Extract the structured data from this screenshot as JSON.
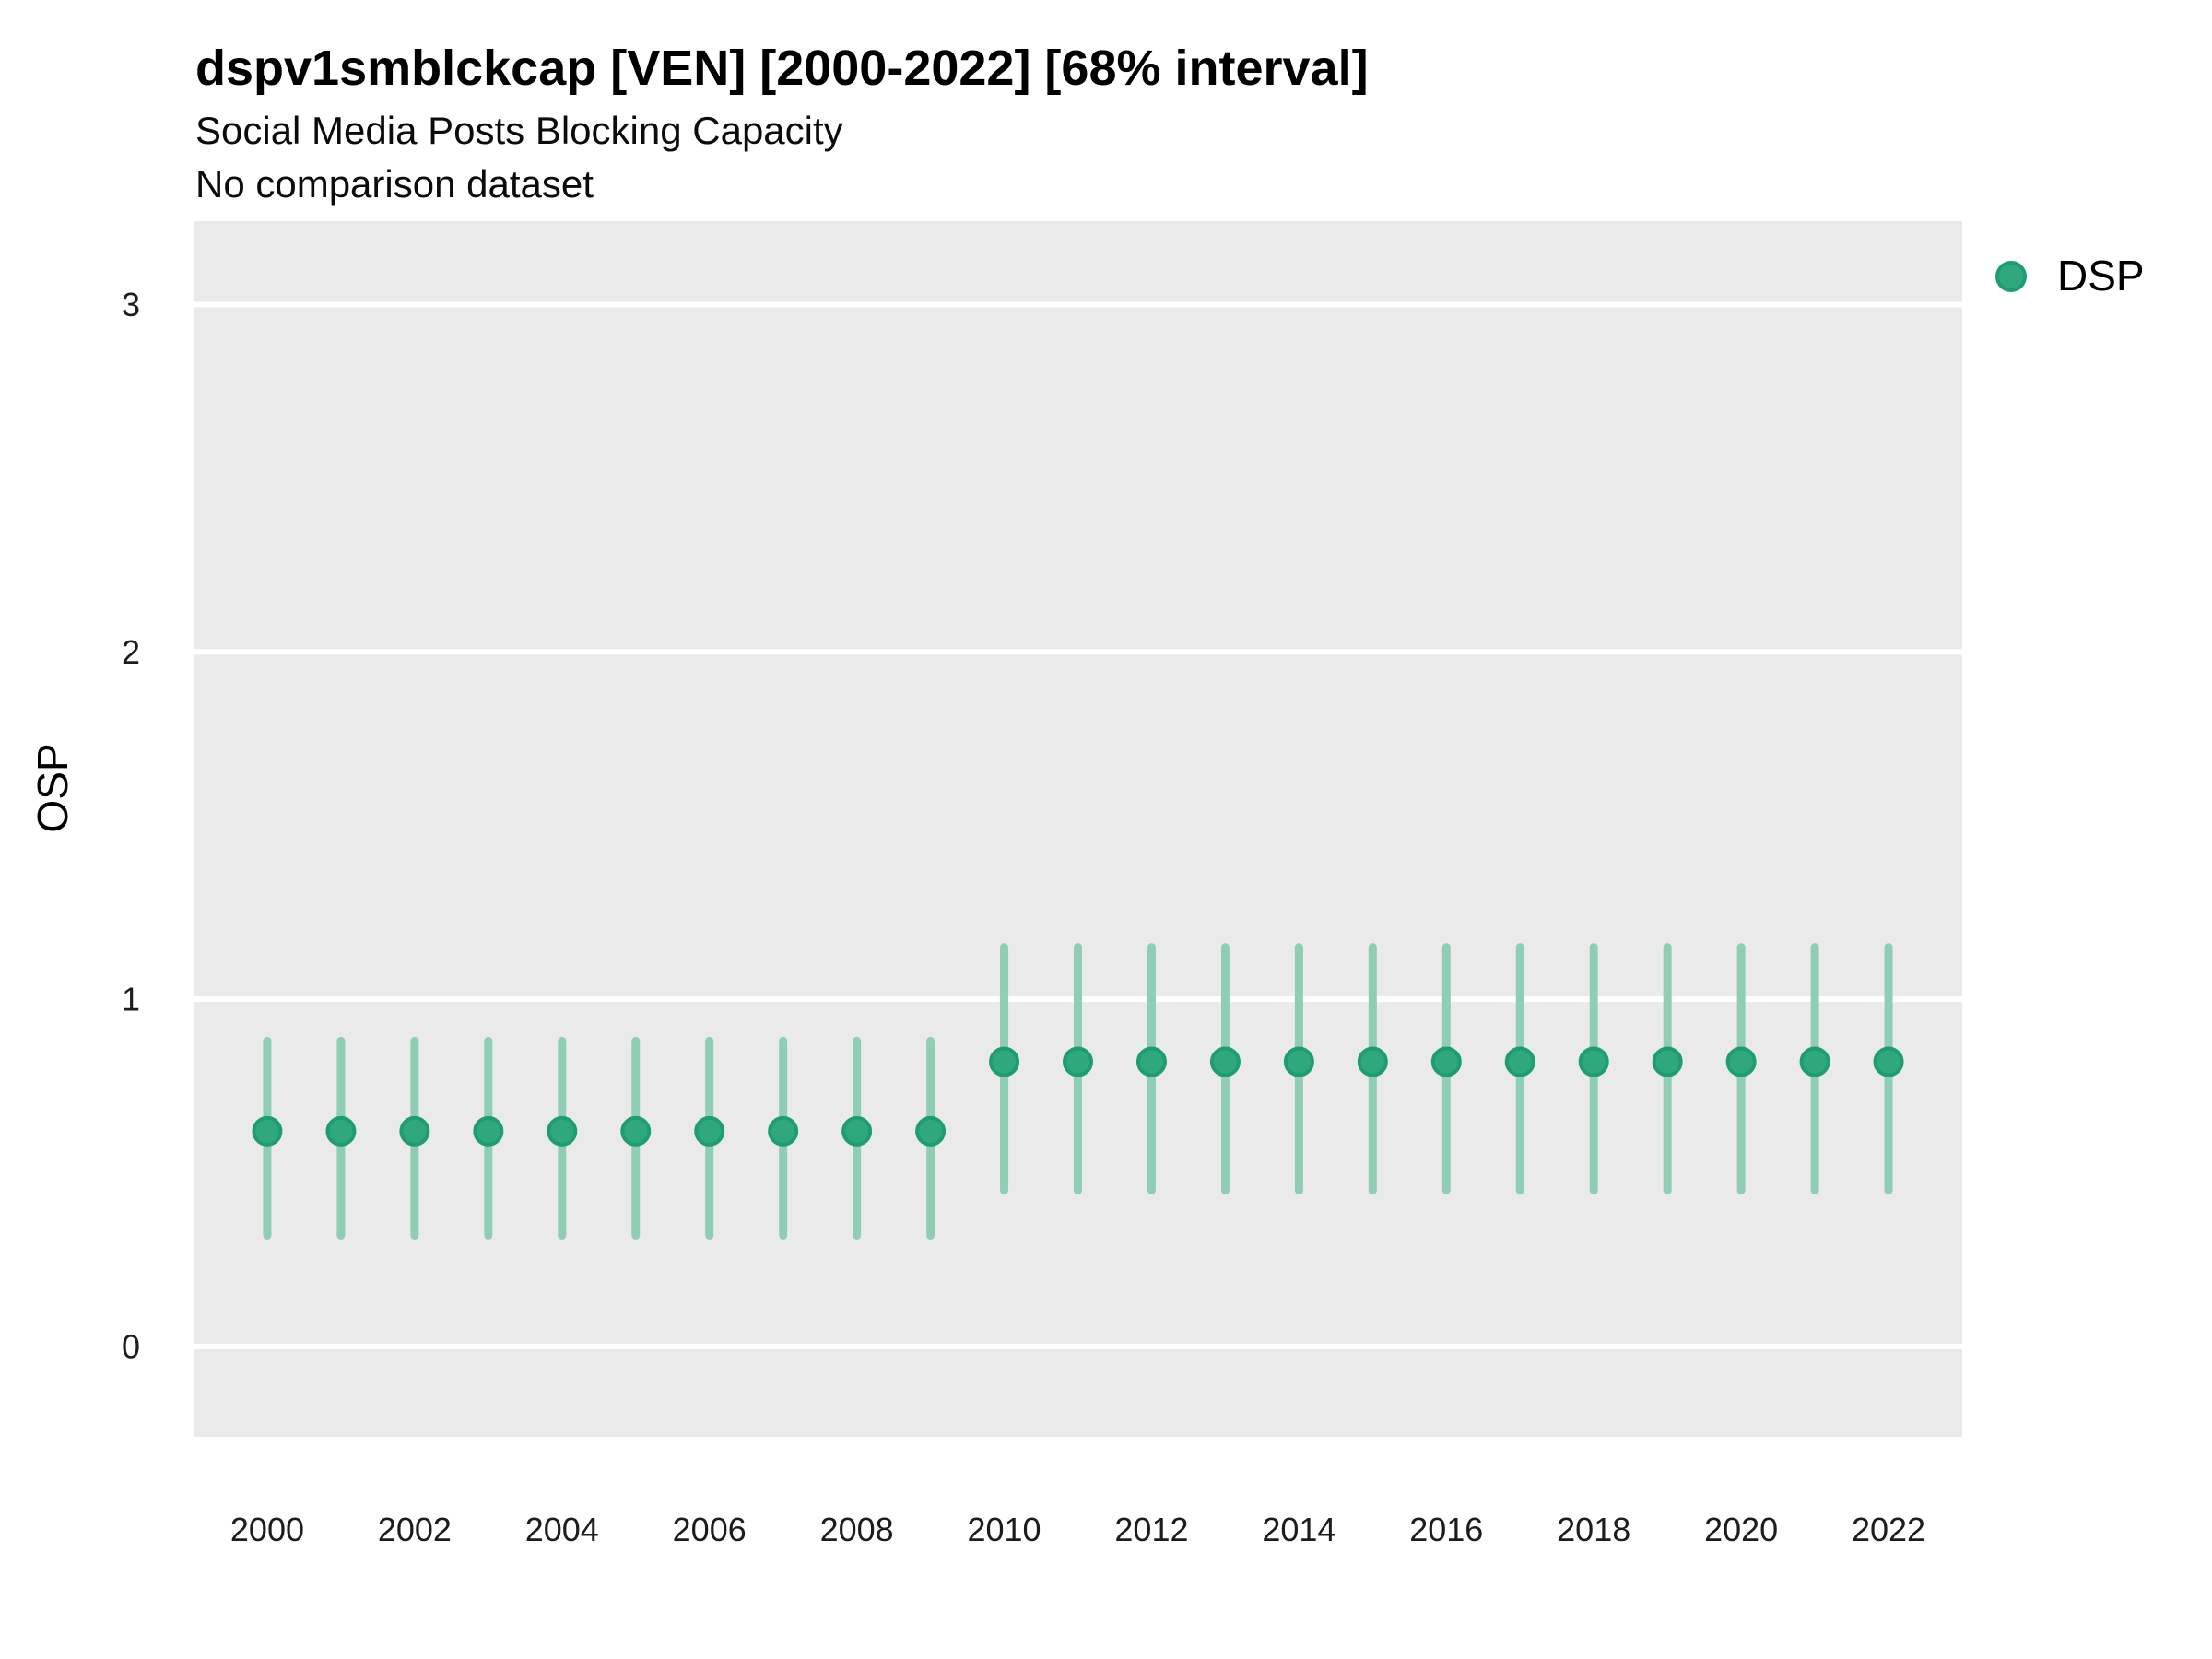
{
  "header": {
    "title": "dspv1smblckcap [VEN] [2000-2022] [68% interval]",
    "subtitle": "Social Media Posts Blocking Capacity",
    "subtitle2": "No comparison dataset"
  },
  "legend": {
    "series_label": "DSP"
  },
  "colors": {
    "point_fill": "#2FA87D",
    "point_stroke": "#1E9E70",
    "interval": "#90CDB5",
    "panel_bg": "#EAEAEA",
    "gridline": "#FFFFFF",
    "axis_text": "#1c1c1c"
  },
  "chart_data": {
    "type": "scatter",
    "subtype": "pointrange",
    "title": "dspv1smblckcap [VEN] [2000-2022] [68% interval]",
    "subtitle": "Social Media Posts Blocking Capacity",
    "note": "No comparison dataset",
    "interval_level": "68%",
    "xlabel": "",
    "ylabel": "OSP",
    "xlim": [
      1999,
      2023
    ],
    "ylim": [
      -0.26,
      3.24
    ],
    "grid": "horizontal-major-only",
    "legend_position": "top-right",
    "x_ticks": [
      2000,
      2002,
      2004,
      2006,
      2008,
      2010,
      2012,
      2014,
      2016,
      2018,
      2020,
      2022
    ],
    "y_ticks": [
      0,
      1,
      2,
      3
    ],
    "x": [
      2000,
      2001,
      2002,
      2003,
      2004,
      2005,
      2006,
      2007,
      2008,
      2009,
      2010,
      2011,
      2012,
      2013,
      2014,
      2015,
      2016,
      2017,
      2018,
      2019,
      2020,
      2021,
      2022
    ],
    "series": [
      {
        "name": "DSP",
        "estimates": [
          0.62,
          0.62,
          0.62,
          0.62,
          0.62,
          0.62,
          0.62,
          0.62,
          0.62,
          0.62,
          0.82,
          0.82,
          0.82,
          0.82,
          0.82,
          0.82,
          0.82,
          0.82,
          0.82,
          0.82,
          0.82,
          0.82,
          0.82
        ],
        "lower": [
          0.32,
          0.32,
          0.32,
          0.32,
          0.32,
          0.32,
          0.32,
          0.32,
          0.32,
          0.32,
          0.45,
          0.45,
          0.45,
          0.45,
          0.45,
          0.45,
          0.45,
          0.45,
          0.45,
          0.45,
          0.45,
          0.45,
          0.45
        ],
        "upper": [
          0.88,
          0.88,
          0.88,
          0.88,
          0.88,
          0.88,
          0.88,
          0.88,
          0.88,
          0.88,
          1.15,
          1.15,
          1.15,
          1.15,
          1.15,
          1.15,
          1.15,
          1.15,
          1.15,
          1.15,
          1.15,
          1.15,
          1.15
        ]
      }
    ]
  }
}
